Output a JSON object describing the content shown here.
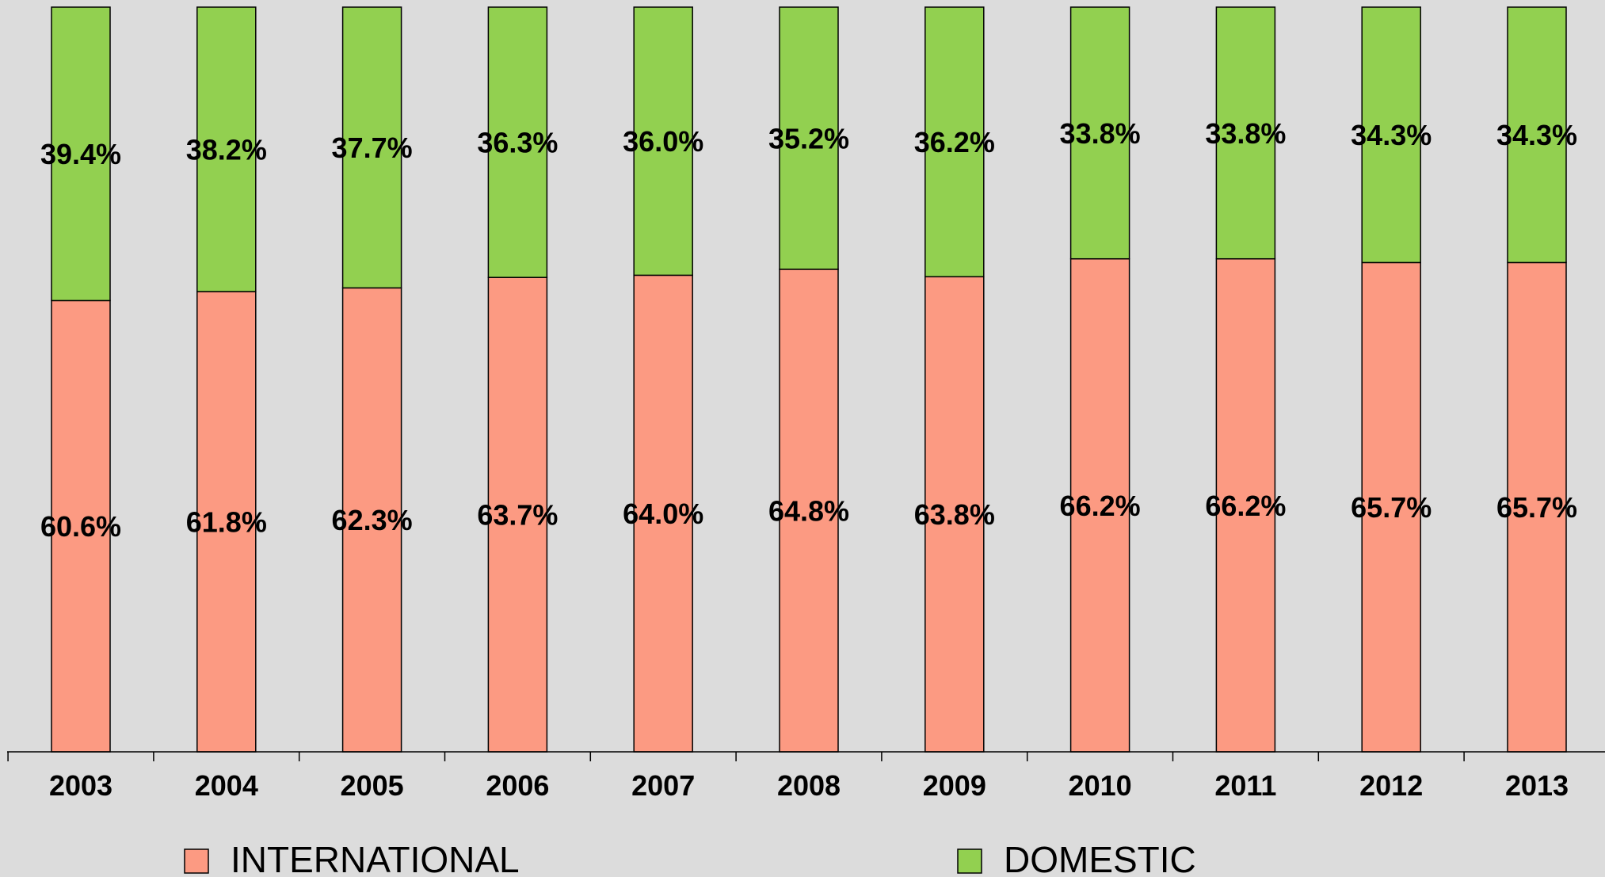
{
  "chart_data": {
    "type": "bar",
    "stacked": true,
    "percent": true,
    "categories": [
      "2003",
      "2004",
      "2005",
      "2006",
      "2007",
      "2008",
      "2009",
      "2010",
      "2011",
      "2012",
      "2013"
    ],
    "series": [
      {
        "name": "INTERNATIONAL",
        "color": "#fc9a82",
        "values": [
          60.6,
          61.8,
          62.3,
          63.7,
          64.0,
          64.8,
          63.8,
          66.2,
          66.2,
          65.7,
          65.7
        ],
        "labels": [
          "60.6%",
          "61.8%",
          "62.3%",
          "63.7%",
          "64.0%",
          "64.8%",
          "63.8%",
          "66.2%",
          "66.2%",
          "65.7%",
          "65.7%"
        ]
      },
      {
        "name": "DOMESTIC",
        "color": "#92d050",
        "values": [
          39.4,
          38.2,
          37.7,
          36.3,
          36.0,
          35.2,
          36.2,
          33.8,
          33.8,
          34.3,
          34.3
        ],
        "labels": [
          "39.4%",
          "38.2%",
          "37.7%",
          "36.3%",
          "36.0%",
          "35.2%",
          "36.2%",
          "33.8%",
          "33.8%",
          "34.3%",
          "34.3%"
        ]
      }
    ],
    "ylim": [
      0,
      100
    ],
    "grid": false,
    "legend_position": "bottom"
  }
}
